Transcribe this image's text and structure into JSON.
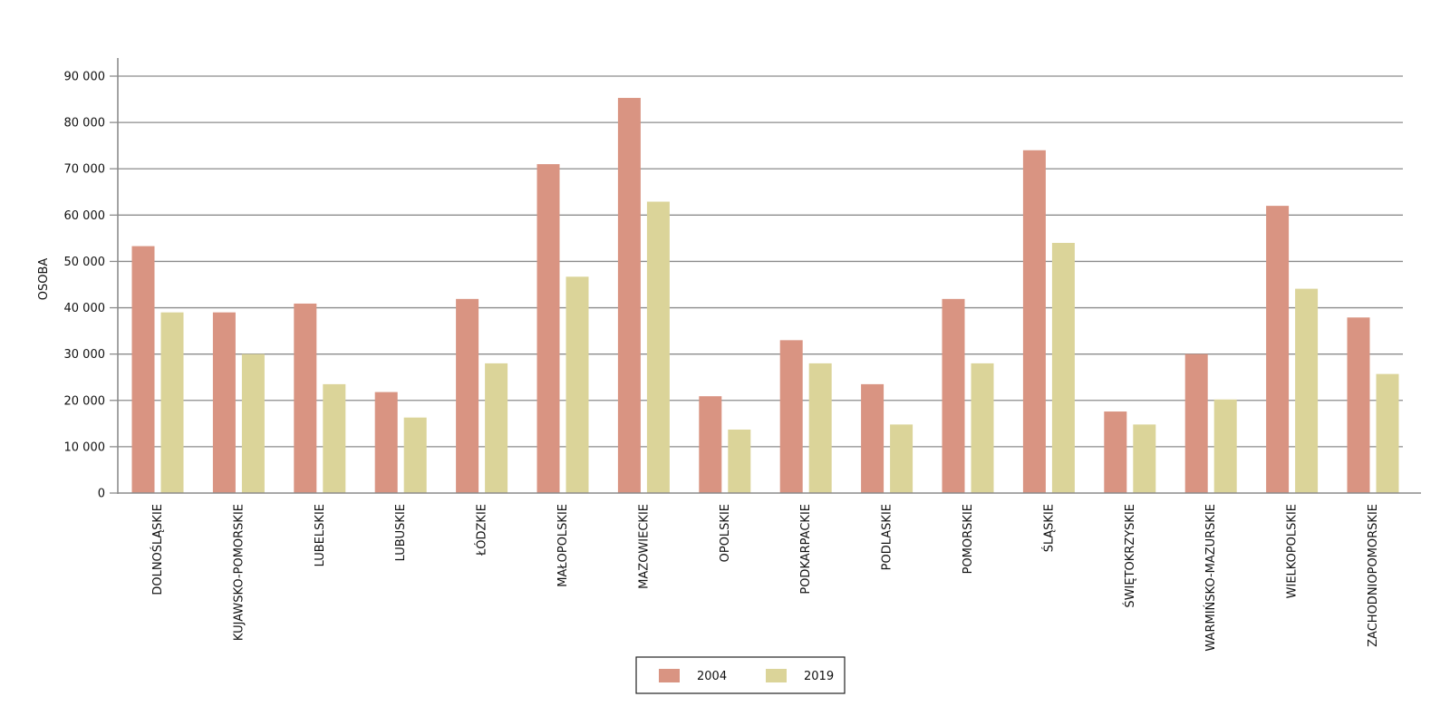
{
  "chart_data": {
    "type": "bar",
    "title": "",
    "xlabel": "",
    "ylabel": "OSOBA",
    "ylim": [
      0,
      90000
    ],
    "yticks": [
      0,
      10000,
      20000,
      30000,
      40000,
      50000,
      60000,
      70000,
      80000,
      90000
    ],
    "ytick_labels": [
      "0",
      "10 000",
      "20 000",
      "30 000",
      "40 000",
      "50 000",
      "60 000",
      "70 000",
      "80 000",
      "90 000"
    ],
    "grid": true,
    "legend_position": "bottom-center",
    "categories": [
      "DOLNOŚLĄSKIE",
      "KUJAWSKO-POMORSKIE",
      "LUBELSKIE",
      "LUBUSKIE",
      "ŁÓDZKIE",
      "MAŁOPOLSKIE",
      "MAZOWIECKIE",
      "OPOLSKIE",
      "PODKARPACKIE",
      "PODLASKIE",
      "POMORSKIE",
      "ŚLĄSKIE",
      "ŚWIĘTOKRZYSKIE",
      "WARMIŃSKO-MAZURSKIE",
      "WIELKOPOLSKIE",
      "ZACHODNIOPOMORSKIE"
    ],
    "series": [
      {
        "name": "2004",
        "color": "#d99482",
        "values": [
          53300,
          39000,
          40900,
          21800,
          41900,
          71000,
          85300,
          20900,
          33000,
          23500,
          41900,
          74000,
          17600,
          30000,
          62000,
          37900
        ]
      },
      {
        "name": "2019",
        "color": "#dbd499",
        "values": [
          39000,
          30000,
          23500,
          16300,
          28000,
          46700,
          62900,
          13700,
          28000,
          14800,
          28000,
          54000,
          14800,
          20200,
          44100,
          25700
        ]
      }
    ]
  },
  "colors": {
    "grid": "#8c8c8c",
    "axis": "#8c8c8c",
    "legend_border": "#222222"
  }
}
